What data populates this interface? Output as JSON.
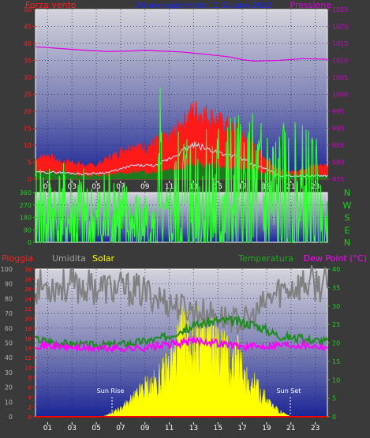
{
  "header": {
    "wind_title": "Forza vento",
    "center_title": "24 ore aggiornate 10 Giugno 2022",
    "pressure_title": "Pressione"
  },
  "lower_header": {
    "rain": "Pioggia",
    "humidity": "Umidita",
    "solar": "Solar",
    "temperature": "Temperatura",
    "dewpoint": "Dew Point (°C)"
  },
  "annotations": {
    "sunrise": "Sun Rise",
    "sunset": "Sun Set"
  },
  "compass": [
    "N",
    "W",
    "S",
    "E",
    "N"
  ],
  "colors": {
    "wind_gust": "#ff1a1a",
    "wind_avg": "#e0e0ff",
    "wind_speed": "#1e7a1e",
    "pressure": "#e000e0",
    "direction": "#33ff33",
    "humidity": "#808080",
    "solar": "#ffff00",
    "temperature": "#1e8c1e",
    "dewpoint": "#ff00ff",
    "rain": "#ff0000",
    "red_axis": "#ff2020",
    "purple_axis": "#d000d0",
    "green_axis": "#20d020"
  },
  "chart_data": [
    {
      "type": "line",
      "name": "wind-pressure",
      "x_ticks": [
        "01",
        "03",
        "05",
        "07",
        "09",
        "11",
        "13",
        "15",
        "17",
        "19",
        "21",
        "23"
      ],
      "y_left": {
        "label": "Forza vento",
        "ticks": [
          0,
          5,
          10,
          15,
          20,
          25,
          30,
          35,
          40,
          45,
          50
        ],
        "range": [
          0,
          50
        ]
      },
      "y_right": {
        "label": "Pressione",
        "ticks": [
          975,
          980,
          985,
          990,
          995,
          1000,
          1005,
          1010,
          1015,
          1020,
          1025
        ],
        "range": [
          975,
          1025
        ]
      },
      "series": [
        {
          "name": "pressure",
          "axis": "right",
          "x": [
            0,
            2,
            4,
            6,
            8,
            9,
            10,
            12,
            14,
            16,
            17,
            18,
            20,
            22,
            24
          ],
          "y": [
            1014,
            1013.5,
            1013,
            1012.6,
            1012.8,
            1013,
            1012.8,
            1012.5,
            1011.8,
            1011,
            1010.2,
            1009.8,
            1010,
            1010.5,
            1010.3
          ]
        },
        {
          "name": "gust",
          "axis": "left",
          "x": [
            0,
            1,
            2,
            3,
            4,
            5,
            6,
            7,
            8,
            9,
            10,
            11,
            12,
            13,
            14,
            15,
            16,
            17,
            18,
            19,
            20,
            21,
            22,
            23,
            24
          ],
          "y": [
            6,
            7,
            5,
            5,
            4,
            4,
            6,
            8,
            10,
            9,
            11,
            12,
            16,
            20,
            19,
            17,
            15,
            13,
            9,
            6,
            3,
            2,
            3,
            4,
            4
          ]
        },
        {
          "name": "average",
          "axis": "left",
          "x": [
            0,
            2,
            4,
            6,
            7,
            8,
            9,
            10,
            11,
            12,
            13,
            14,
            15,
            16,
            17,
            18,
            19,
            20,
            22,
            24
          ],
          "y": [
            2,
            2,
            1.5,
            2,
            3,
            4,
            4,
            4,
            6,
            8,
            10,
            9,
            8,
            7,
            6,
            4,
            3,
            1,
            1,
            1
          ]
        },
        {
          "name": "speed",
          "axis": "left",
          "x": [
            0,
            2,
            4,
            6,
            8,
            10,
            11,
            12,
            13,
            14,
            15,
            16,
            17,
            18,
            20,
            22,
            24
          ],
          "y": [
            2,
            2,
            1,
            1,
            2,
            2,
            3,
            3,
            4,
            4,
            4,
            3,
            3,
            2,
            1,
            1,
            1
          ]
        }
      ]
    },
    {
      "type": "line",
      "name": "wind-direction",
      "x_ticks": [
        "01",
        "03",
        "05",
        "07",
        "09",
        "11",
        "13",
        "15",
        "17",
        "19",
        "21",
        "23"
      ],
      "y_left": {
        "ticks": [
          0,
          90,
          180,
          270,
          360
        ],
        "range": [
          0,
          360
        ]
      },
      "series": [
        {
          "name": "direction",
          "x": [
            0,
            1,
            2,
            3,
            4,
            4.5,
            5,
            5.5,
            6,
            6.3,
            6.6,
            7,
            8,
            9,
            10,
            10.3,
            10.4,
            10.6,
            11,
            12,
            13,
            14,
            15,
            16,
            17,
            18,
            19,
            20,
            21,
            22,
            23,
            23.5,
            24
          ],
          "y": [
            150,
            150,
            140,
            135,
            130,
            110,
            110,
            130,
            150,
            155,
            190,
            120,
            100,
            90,
            70,
            350,
            40,
            90,
            110,
            230,
            230,
            235,
            225,
            235,
            230,
            225,
            240,
            210,
            210,
            210,
            205,
            110,
            100
          ]
        }
      ]
    },
    {
      "type": "line",
      "name": "humidity-solar-temperature",
      "x_ticks": [
        "01",
        "03",
        "05",
        "07",
        "09",
        "11",
        "13",
        "15",
        "17",
        "19",
        "21",
        "23"
      ],
      "y_left_outer": {
        "label": "Umidita",
        "ticks": [
          0,
          10,
          20,
          30,
          40,
          50,
          60,
          70,
          80,
          90,
          100
        ],
        "range": [
          0,
          100
        ]
      },
      "y_left_inner": {
        "label": "Pioggia",
        "ticks": [
          0,
          2,
          4,
          6,
          8,
          10,
          12,
          14,
          16,
          18,
          20,
          22,
          24,
          26,
          28,
          30
        ],
        "range": [
          0,
          30
        ]
      },
      "y_right": {
        "label": "Temperatura",
        "ticks": [
          0,
          5,
          10,
          15,
          20,
          25,
          30,
          35,
          40
        ],
        "range": [
          0,
          40
        ]
      },
      "series": [
        {
          "name": "humidity",
          "axis": "left_outer",
          "x": [
            0,
            2,
            4,
            6,
            8,
            9,
            10,
            11,
            12,
            13,
            14,
            15,
            16,
            17,
            18,
            19,
            20,
            21,
            22,
            23,
            24
          ],
          "y": [
            88,
            89,
            88,
            87,
            86,
            84,
            81,
            77,
            74,
            72,
            70,
            68,
            66,
            64,
            68,
            78,
            85,
            88,
            90,
            90,
            89
          ]
        },
        {
          "name": "temperature",
          "axis": "right",
          "x": [
            0,
            2,
            4,
            6,
            8,
            9,
            10,
            11,
            12,
            13,
            14,
            15,
            16,
            17,
            18,
            19,
            20,
            22,
            24
          ],
          "y": [
            21,
            20,
            19.5,
            19.5,
            20,
            20.5,
            21,
            22,
            23.5,
            24.5,
            25.5,
            26,
            26,
            25.5,
            25,
            23.5,
            22,
            21,
            20.5
          ]
        },
        {
          "name": "dewpoint",
          "axis": "right",
          "x": [
            0,
            2,
            4,
            6,
            8,
            10,
            12,
            13,
            14,
            15,
            16,
            17,
            18,
            20,
            22,
            24
          ],
          "y": [
            19.5,
            19,
            18.5,
            18.5,
            18.5,
            19,
            20,
            20.5,
            20.5,
            20,
            19.5,
            19,
            19,
            19.5,
            19.5,
            19
          ]
        },
        {
          "name": "solar",
          "axis": "left_outer",
          "x": [
            5.5,
            6,
            7,
            8,
            9,
            10,
            11,
            11.5,
            12,
            12.5,
            13,
            13.5,
            14,
            14.5,
            15,
            15.5,
            16,
            16.5,
            17,
            18,
            19,
            20,
            21
          ],
          "y": [
            0,
            2,
            7,
            15,
            26,
            30,
            45,
            55,
            68,
            75,
            60,
            72,
            66,
            70,
            58,
            60,
            45,
            55,
            40,
            28,
            15,
            5,
            0
          ]
        },
        {
          "name": "rain",
          "axis": "left_inner",
          "x": [
            0,
            24
          ],
          "y": [
            0,
            0
          ]
        }
      ]
    }
  ]
}
